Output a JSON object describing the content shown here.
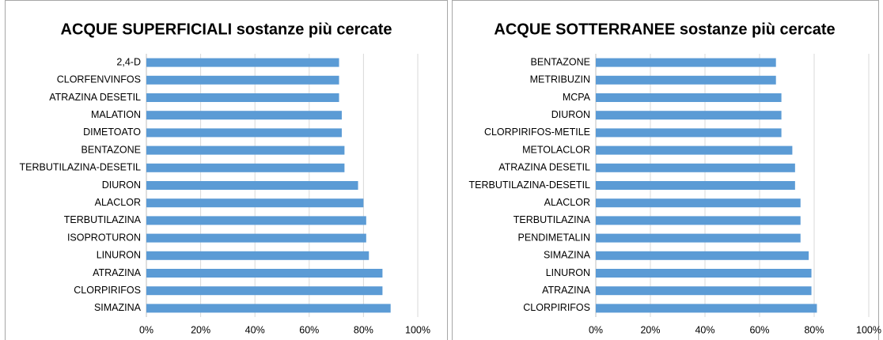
{
  "chart_data": [
    {
      "type": "bar",
      "orientation": "horizontal",
      "title": "ACQUE SUPERFICIALI sostanze più cercate",
      "categories": [
        "2,4-D",
        "CLORFENVINFOS",
        "ATRAZINA DESETIL",
        "MALATION",
        "DIMETOATO",
        "BENTAZONE",
        "TERBUTILAZINA-DESETIL",
        "DIURON",
        "ALACLOR",
        "TERBUTILAZINA",
        "ISOPROTURON",
        "LINURON",
        "ATRAZINA",
        "CLORPIRIFOS",
        "SIMAZINA"
      ],
      "values": [
        71,
        71,
        71,
        72,
        72,
        73,
        73,
        78,
        80,
        81,
        81,
        82,
        87,
        87,
        90
      ],
      "color": "#5b9bd5",
      "xlim": [
        0,
        100
      ],
      "xticks": [
        {
          "value": 0,
          "label": "0%"
        },
        {
          "value": 20,
          "label": "20%"
        },
        {
          "value": 40,
          "label": "40%"
        },
        {
          "value": 60,
          "label": "60%"
        },
        {
          "value": 80,
          "label": "80%"
        },
        {
          "value": 100,
          "label": "100%"
        }
      ],
      "grid": true
    },
    {
      "type": "bar",
      "orientation": "horizontal",
      "title": "ACQUE SOTTERRANEE sostanze più cercate",
      "categories": [
        "BENTAZONE",
        "METRIBUZIN",
        "MCPA",
        "DIURON",
        "CLORPIRIFOS-METILE",
        "METOLACLOR",
        "ATRAZINA DESETIL",
        "TERBUTILAZINA-DESETIL",
        "ALACLOR",
        "TERBUTILAZINA",
        "PENDIMETALIN",
        "SIMAZINA",
        "LINURON",
        "ATRAZINA",
        "CLORPIRIFOS"
      ],
      "values": [
        66,
        66,
        68,
        68,
        68,
        72,
        73,
        73,
        75,
        75,
        75,
        78,
        79,
        79,
        81
      ],
      "color": "#5b9bd5",
      "xlim": [
        0,
        100
      ],
      "xticks": [
        {
          "value": 0,
          "label": "0%"
        },
        {
          "value": 20,
          "label": "20%"
        },
        {
          "value": 40,
          "label": "40%"
        },
        {
          "value": 60,
          "label": "60%"
        },
        {
          "value": 80,
          "label": "80%"
        },
        {
          "value": 100,
          "label": "100%"
        }
      ],
      "grid": true
    }
  ]
}
